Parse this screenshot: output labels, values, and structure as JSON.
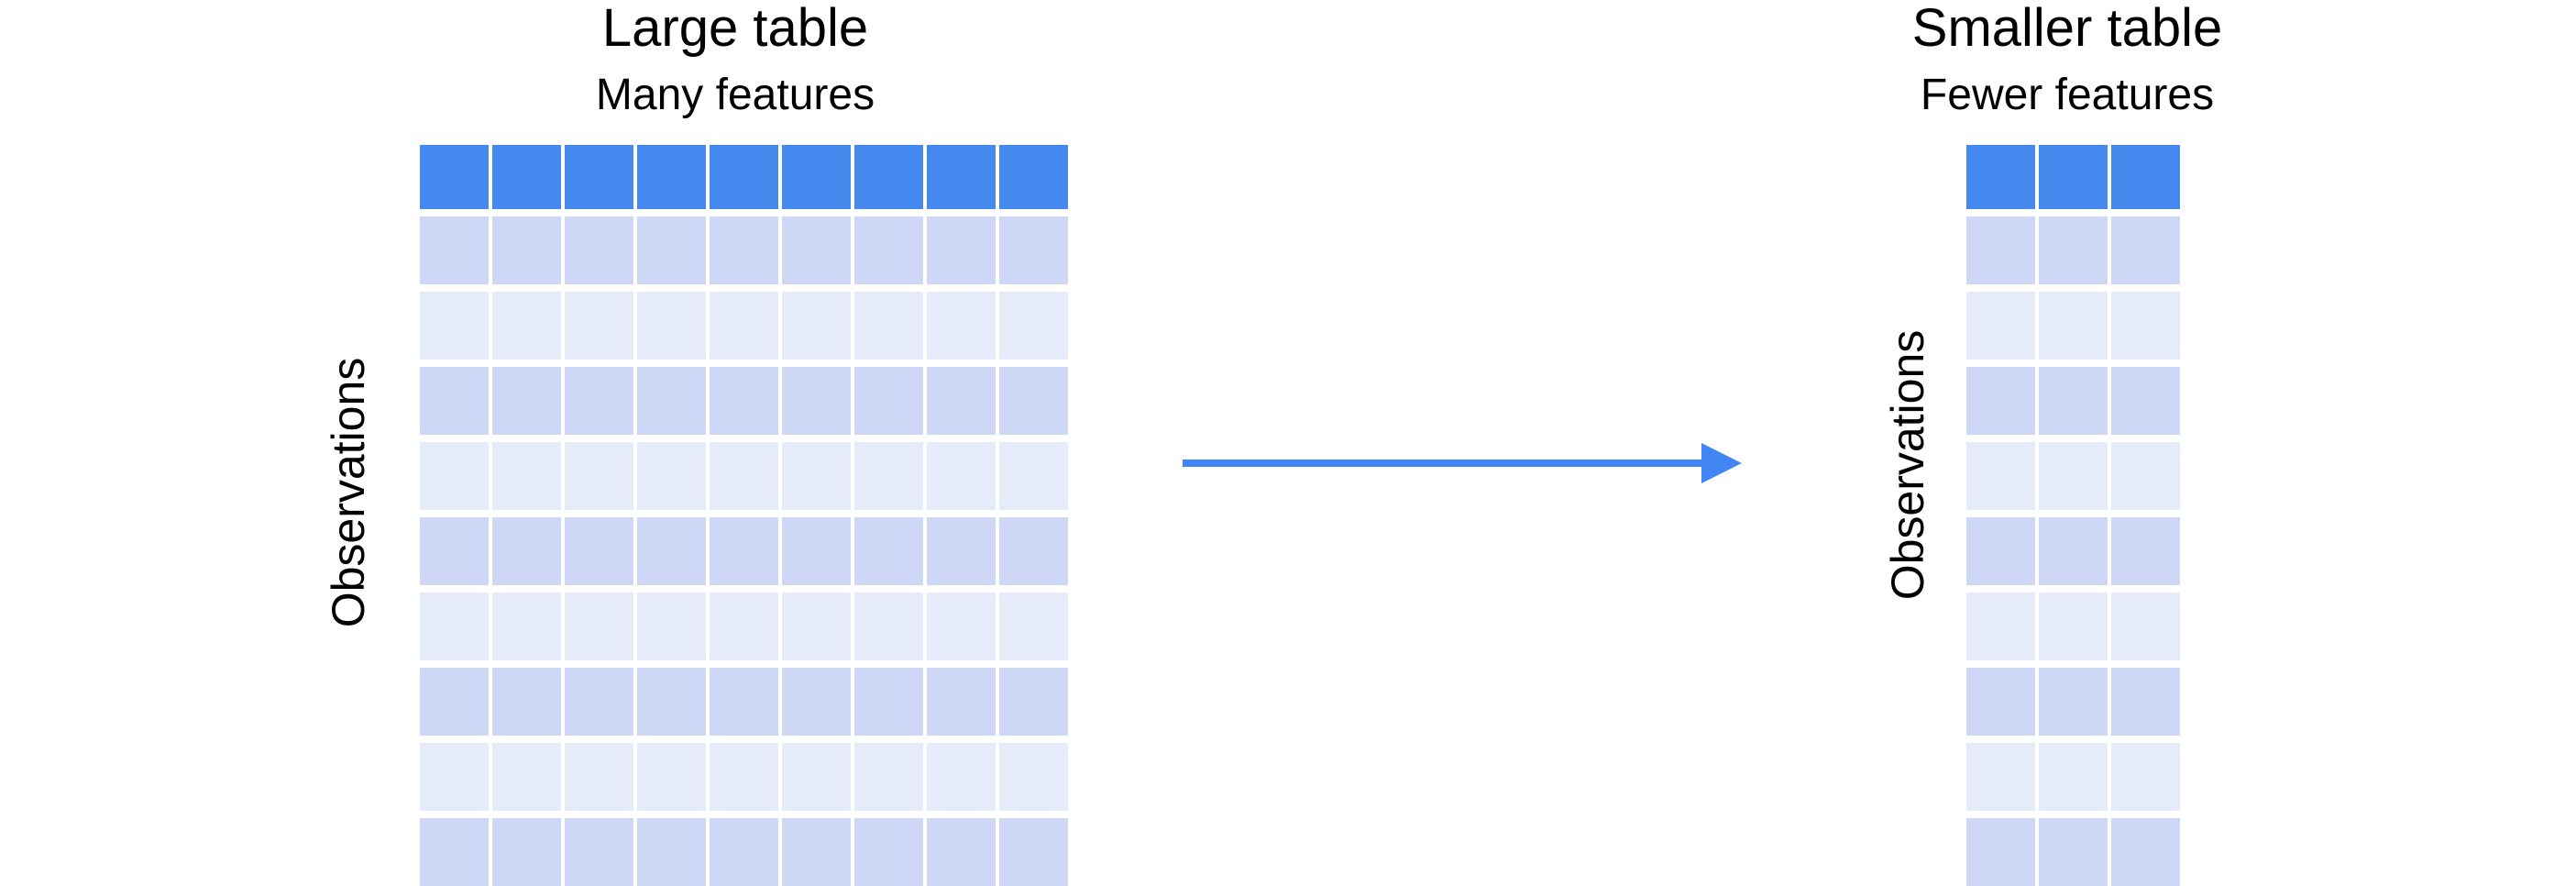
{
  "colors": {
    "header": "#4589EE",
    "row_dark": "#CED8F6",
    "row_light": "#E6EBFA",
    "arrow": "#4285F4"
  },
  "left_table": {
    "title": "Large table",
    "subtitle": "Many features",
    "axis_label": "Observations",
    "columns": 9,
    "rows": 9
  },
  "right_table": {
    "title": "Smaller table",
    "subtitle": "Fewer features",
    "axis_label": "Observations",
    "columns": 3,
    "rows": 9
  },
  "arrow": {
    "direction": "right"
  }
}
